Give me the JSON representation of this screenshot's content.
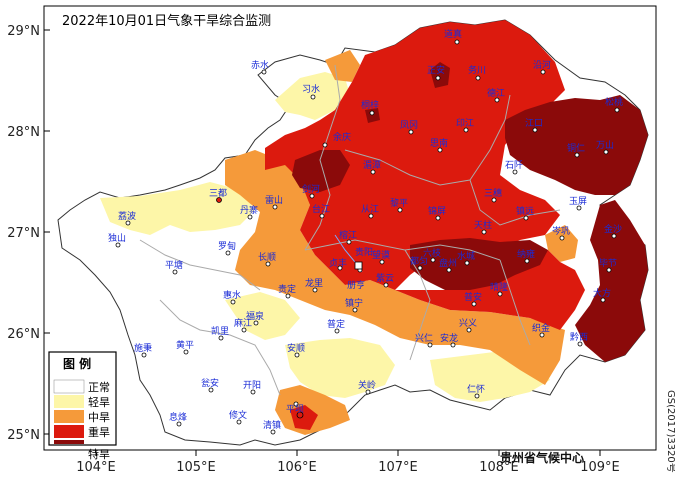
{
  "title": "2022年10月01日气象干旱综合监测",
  "agency": "贵州省气候中心",
  "map_code": "GS(2017)3320号",
  "axes": {
    "lat_ticks": [
      "29°N",
      "28°N",
      "27°N",
      "26°N",
      "25°N"
    ],
    "lon_ticks": [
      "104°E",
      "105°E",
      "106°E",
      "107°E",
      "108°E",
      "109°E"
    ]
  },
  "legend": {
    "title": "图  例",
    "items": [
      {
        "label": "正常",
        "color": "#ffffff"
      },
      {
        "label": "轻旱",
        "color": "#fdf6a8"
      },
      {
        "label": "中旱",
        "color": "#f59a3a"
      },
      {
        "label": "重旱",
        "color": "#dc1a0e"
      },
      {
        "label": "特旱",
        "color": "#8b0a0a"
      }
    ]
  },
  "cities": [
    "赤水",
    "习水",
    "桐梓",
    "道真",
    "务川",
    "沿河",
    "松桃",
    "正安",
    "凤冈",
    "湄潭",
    "余庆",
    "思南",
    "印江",
    "德江",
    "石阡",
    "江口",
    "铜仁",
    "万山",
    "玉屏",
    "岑巩",
    "镇远",
    "三穗",
    "天柱",
    "锦屏",
    "黎平",
    "从江",
    "榕江",
    "剑河",
    "台江",
    "雷山",
    "丹寨",
    "三都",
    "荔波",
    "独山",
    "平塘",
    "罗甸",
    "长顺",
    "惠水",
    "贵定",
    "龙里",
    "福泉",
    "麻江",
    "凯里",
    "黄平",
    "施秉",
    "瓮安",
    "开阳",
    "息烽",
    "修文",
    "清镇",
    "平坝",
    "安顺",
    "普定",
    "镇宁",
    "关岭",
    "紫云",
    "望谟",
    "册亨",
    "贞丰",
    "兴仁",
    "安龙",
    "兴义",
    "普安",
    "晴隆",
    "盘州",
    "六枝",
    "水城",
    "纳雍",
    "织金",
    "黔西",
    "大方",
    "毕节",
    "金沙",
    "仁怀",
    "遵义",
    "绥阳",
    "威宁",
    "赫章",
    "贵阳",
    "都匀"
  ]
}
